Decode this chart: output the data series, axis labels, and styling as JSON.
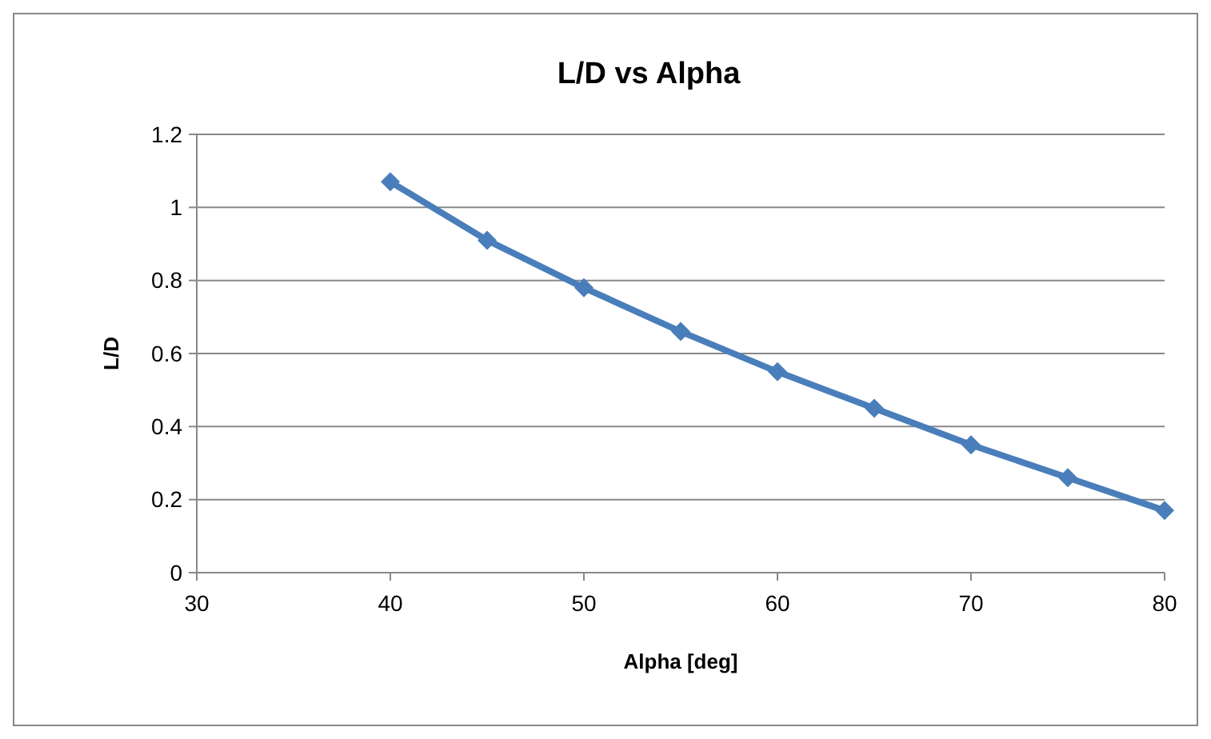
{
  "chart_data": {
    "type": "line",
    "title": "L/D vs Alpha",
    "xlabel": "Alpha [deg]",
    "ylabel": "L/D",
    "x": [
      40,
      45,
      50,
      55,
      60,
      65,
      70,
      75,
      80
    ],
    "series": [
      {
        "color": "#4a7ebb",
        "values": [
          1.07,
          0.91,
          0.78,
          0.66,
          0.55,
          0.45,
          0.35,
          0.26,
          0.17
        ]
      }
    ],
    "xlim": [
      30,
      80
    ],
    "xticks": [
      30,
      40,
      50,
      60,
      70,
      80
    ],
    "ylim": [
      0,
      1.2
    ],
    "yticks": [
      0,
      0.2,
      0.4,
      0.6,
      0.8,
      1,
      1.2
    ],
    "grid": "y",
    "marker": "diamond",
    "line_style": "solid"
  }
}
